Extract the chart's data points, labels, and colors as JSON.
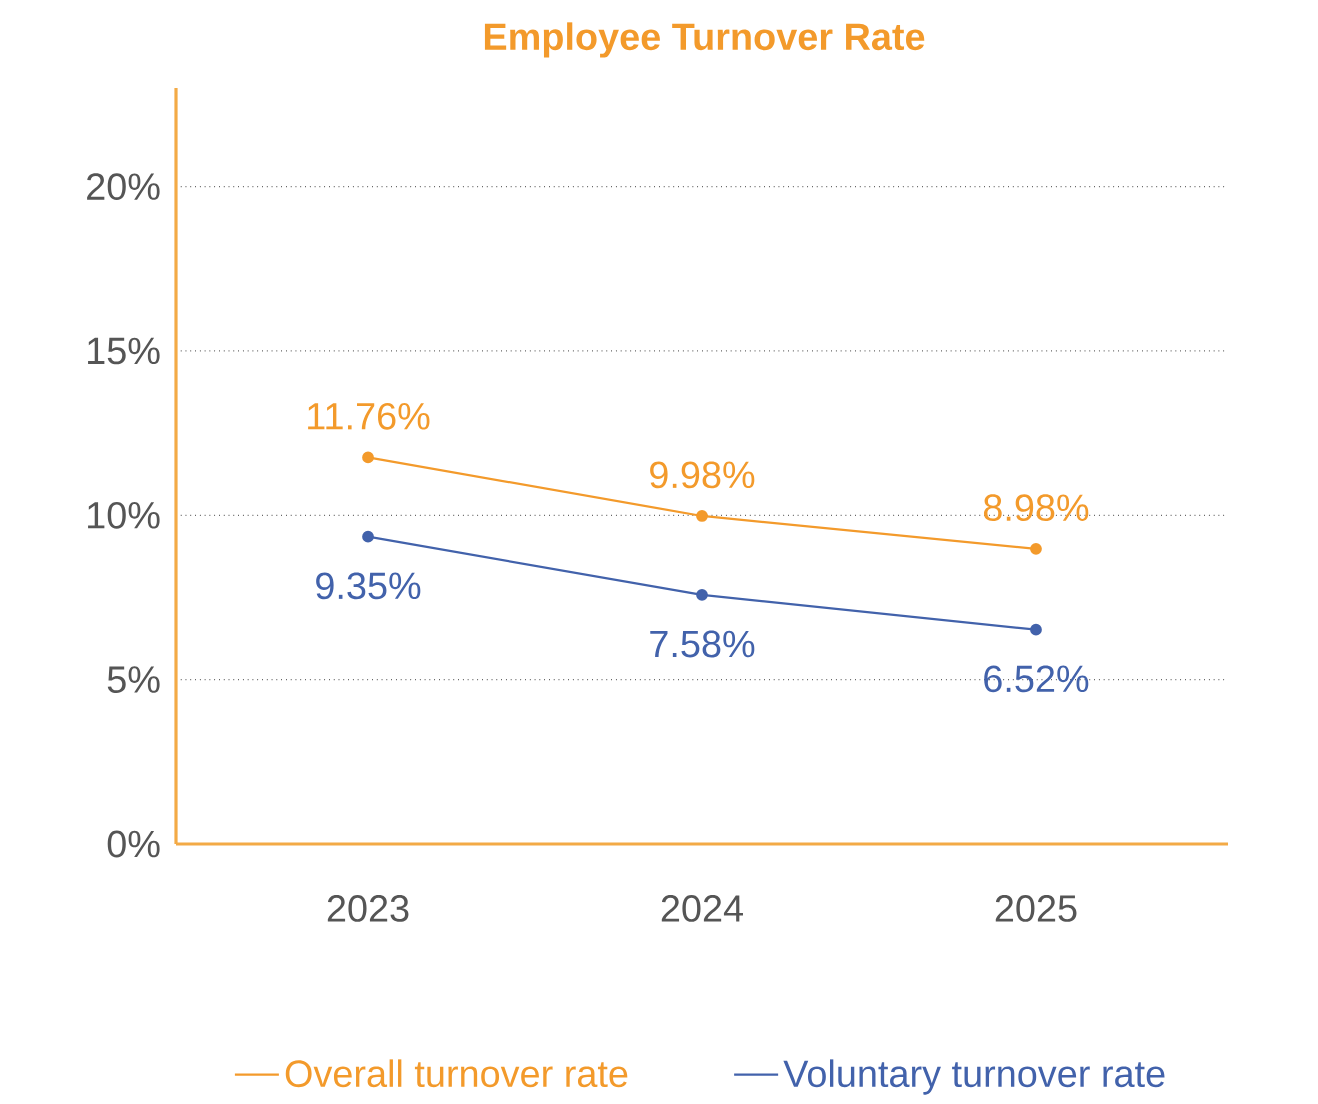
{
  "chart_data": {
    "type": "line",
    "title": "Employee Turnover Rate",
    "categories": [
      "2023",
      "2024",
      "2025"
    ],
    "series": [
      {
        "name": "Overall turnover rate",
        "color": "#f39a2b",
        "values": [
          11.76,
          9.98,
          8.98
        ],
        "value_labels": [
          "11.76%",
          "9.98%",
          "8.98%"
        ]
      },
      {
        "name": "Voluntary turnover rate",
        "color": "#4262ab",
        "values": [
          9.35,
          7.58,
          6.52
        ],
        "value_labels": [
          "9.35%",
          "7.58%",
          "6.52%"
        ]
      }
    ],
    "ylim": [
      0,
      23
    ],
    "yticks": [
      {
        "value": 0,
        "label": "0%"
      },
      {
        "value": 5,
        "label": "5%"
      },
      {
        "value": 10,
        "label": "10%"
      },
      {
        "value": 15,
        "label": "15%"
      },
      {
        "value": 20,
        "label": "20%"
      }
    ],
    "grid": "y",
    "legend": "bottom",
    "marker": "circle",
    "line_style": "solid"
  }
}
